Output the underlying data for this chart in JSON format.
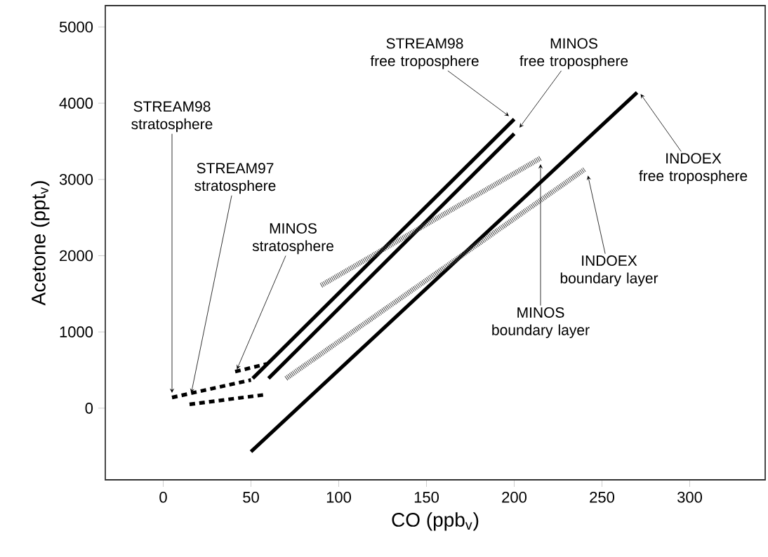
{
  "chart_data": {
    "type": "line",
    "xlabel": "CO (ppb$_{v}$)",
    "ylabel": "Acetone (ppt$_{v}$)",
    "xlim": [
      -33,
      343
    ],
    "ylim": [
      -940,
      5280
    ],
    "xticks": [
      0,
      50,
      100,
      150,
      200,
      250,
      300
    ],
    "yticks": [
      0,
      1000,
      2000,
      3000,
      4000,
      5000
    ],
    "series": [
      {
        "color": "#000000",
        "line_style": "solid",
        "x": [
          51,
          200
        ],
        "values": [
          390,
          3790
        ]
      },
      {
        "color": "#000000",
        "line_style": "solid",
        "x": [
          60,
          200
        ],
        "values": [
          390,
          3600
        ]
      },
      {
        "color": "#000000",
        "line_style": "solid",
        "x": [
          50,
          270
        ],
        "values": [
          -570,
          4140
        ]
      },
      {
        "color": "#444444",
        "line_style": "dotted",
        "x": [
          90,
          215
        ],
        "values": [
          1610,
          3280
        ]
      },
      {
        "color": "#444444",
        "line_style": "dotted",
        "x": [
          70,
          240
        ],
        "values": [
          390,
          3130
        ]
      },
      {
        "color": "#000000",
        "line_style": "dashed",
        "x": [
          5,
          50
        ],
        "values": [
          140,
          370
        ]
      },
      {
        "color": "#000000",
        "line_style": "dashed",
        "x": [
          15,
          59
        ],
        "values": [
          50,
          180
        ]
      },
      {
        "color": "#000000",
        "line_style": "dashed",
        "x": [
          41,
          59
        ],
        "values": [
          480,
          580
        ]
      }
    ],
    "annotations": [
      {
        "text": "STREAM98 free troposphere",
        "x": 197,
        "y": 3830
      },
      {
        "text": "MINOS free troposphere",
        "x": 203,
        "y": 3680
      },
      {
        "text": "INDOEX free troposphere",
        "x": 272,
        "y": 4120
      },
      {
        "text": "STREAM98 stratosphere",
        "x": 5,
        "y": 200
      },
      {
        "text": "STREAM97 stratosphere",
        "x": 16,
        "y": 200
      },
      {
        "text": "MINOS stratosphere",
        "x": 42,
        "y": 510
      },
      {
        "text": "MINOS boundary layer",
        "x": 215,
        "y": 3200
      },
      {
        "text": "INDOEX boundary layer",
        "x": 242,
        "y": 3050
      }
    ]
  }
}
